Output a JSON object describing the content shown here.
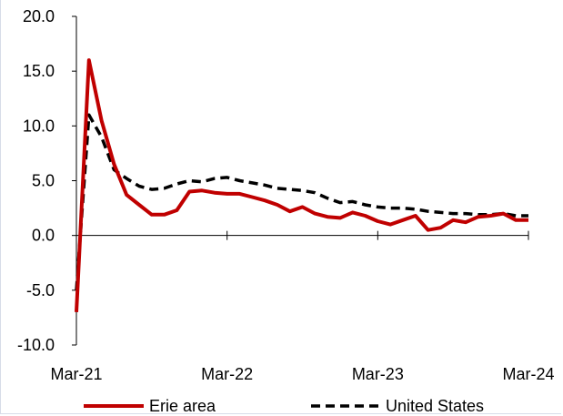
{
  "chart_data": {
    "type": "line",
    "title": "",
    "xlabel": "",
    "ylabel": "",
    "ylim": [
      -10,
      20
    ],
    "yticks": [
      20,
      15,
      10,
      5,
      0,
      -5,
      -10
    ],
    "ytick_labels": [
      "20.0",
      "15.0",
      "10.0",
      "5.0",
      "0.0",
      "-5.0",
      "-10.0"
    ],
    "xtick_labels": [
      "Mar-21",
      "Mar-22",
      "Mar-23",
      "Mar-24"
    ],
    "xtick_positions": [
      0,
      12,
      24,
      36
    ],
    "xlim": [
      0,
      36
    ],
    "grid": false,
    "legend_position": "bottom",
    "series": [
      {
        "name": "Erie area",
        "color": "#c00000",
        "style": "solid",
        "values": [
          -7.0,
          16.0,
          10.5,
          6.5,
          3.7,
          2.8,
          1.9,
          1.9,
          2.3,
          4.0,
          4.1,
          3.9,
          3.8,
          3.8,
          3.5,
          3.2,
          2.8,
          2.2,
          2.6,
          2.0,
          1.7,
          1.6,
          2.1,
          1.8,
          1.3,
          1.0,
          1.4,
          1.8,
          0.5,
          0.7,
          1.4,
          1.2,
          1.7,
          1.8,
          2.0,
          1.4,
          1.4
        ]
      },
      {
        "name": "United States",
        "color": "#000000",
        "style": "dashed",
        "values": [
          -5.0,
          11.0,
          9.0,
          6.0,
          5.2,
          4.5,
          4.2,
          4.3,
          4.7,
          5.0,
          4.9,
          5.2,
          5.3,
          5.0,
          4.8,
          4.6,
          4.3,
          4.2,
          4.1,
          3.9,
          3.4,
          3.0,
          3.1,
          2.8,
          2.6,
          2.5,
          2.5,
          2.4,
          2.2,
          2.1,
          2.0,
          2.0,
          1.9,
          1.9,
          2.0,
          1.8,
          1.8
        ]
      }
    ]
  }
}
